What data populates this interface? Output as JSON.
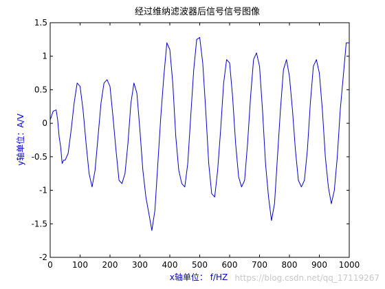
{
  "chart_data": {
    "type": "line",
    "title": "经过维纳滤波器后信号信号图像",
    "xlabel": "x轴单位： f/HZ",
    "ylabel": "y轴单位：A/V",
    "xlim": [
      0,
      1000
    ],
    "ylim": [
      -2,
      1.5
    ],
    "xticks": [
      0,
      100,
      200,
      300,
      400,
      500,
      600,
      700,
      800,
      900,
      1000
    ],
    "yticks": [
      -2,
      -1.5,
      -1,
      -0.5,
      0,
      0.5,
      1,
      1.5
    ],
    "xtick_labels": [
      "0",
      "100",
      "200",
      "300",
      "400",
      "500",
      "600",
      "700",
      "800",
      "900",
      "1000"
    ],
    "ytick_labels": [
      "-2",
      "-1.5",
      "-1",
      "-0.5",
      "0",
      "0.5",
      "1",
      "1.5"
    ],
    "grid": false,
    "series": [
      {
        "color": "#0000cc",
        "x": [
          0,
          10,
          20,
          25,
          30,
          35,
          40,
          45,
          50,
          60,
          70,
          80,
          90,
          100,
          110,
          120,
          130,
          140,
          150,
          160,
          170,
          180,
          190,
          200,
          210,
          220,
          230,
          240,
          250,
          260,
          270,
          280,
          290,
          300,
          310,
          320,
          330,
          340,
          350,
          360,
          370,
          380,
          390,
          400,
          410,
          420,
          430,
          440,
          450,
          460,
          470,
          480,
          490,
          500,
          510,
          520,
          530,
          540,
          550,
          560,
          570,
          580,
          590,
          600,
          610,
          620,
          630,
          640,
          650,
          660,
          670,
          680,
          690,
          700,
          710,
          720,
          730,
          740,
          750,
          760,
          770,
          780,
          790,
          800,
          810,
          820,
          830,
          840,
          850,
          860,
          870,
          880,
          890,
          900,
          910,
          920,
          930,
          940,
          950,
          960,
          970,
          980,
          990,
          1000
        ],
        "y": [
          0.05,
          0.18,
          0.2,
          0.05,
          -0.2,
          -0.35,
          -0.6,
          -0.55,
          -0.55,
          -0.45,
          -0.1,
          0.3,
          0.6,
          0.55,
          0.2,
          -0.3,
          -0.75,
          -0.95,
          -0.7,
          -0.2,
          0.3,
          0.6,
          0.65,
          0.55,
          0.1,
          -0.4,
          -0.85,
          -0.9,
          -0.75,
          -0.3,
          0.3,
          0.6,
          0.45,
          -0.1,
          -0.7,
          -1.1,
          -1.35,
          -1.6,
          -1.3,
          -0.6,
          0.1,
          0.7,
          1.2,
          1.1,
          0.6,
          -0.2,
          -0.7,
          -0.9,
          -0.95,
          -0.6,
          0.1,
          0.8,
          1.25,
          1.28,
          0.9,
          0.2,
          -0.6,
          -1.05,
          -1.1,
          -0.7,
          -0.1,
          0.6,
          0.95,
          0.9,
          0.4,
          -0.3,
          -0.8,
          -0.95,
          -0.85,
          -0.3,
          0.4,
          0.95,
          1.05,
          0.85,
          0.2,
          -0.6,
          -1.1,
          -1.45,
          -1.2,
          -0.5,
          0.2,
          0.8,
          0.95,
          0.7,
          0.2,
          -0.4,
          -0.85,
          -0.95,
          -0.85,
          -0.4,
          0.3,
          0.85,
          0.95,
          0.75,
          0.2,
          -0.5,
          -0.95,
          -1.2,
          -1.0,
          -0.5,
          0.2,
          0.7,
          1.2,
          1.2
        ]
      }
    ]
  },
  "watermark": "https://blog.csdn.net/qq_17119267"
}
